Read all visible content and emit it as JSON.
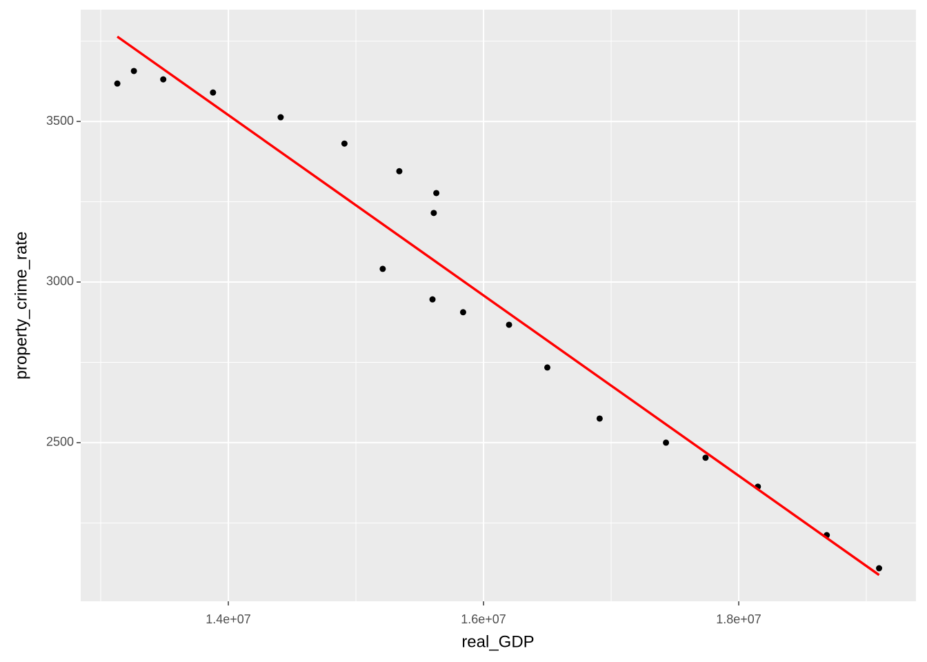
{
  "chart_data": {
    "type": "scatter",
    "x_label": "real_GDP",
    "y_label": "property_crime_rate",
    "x": [
      13130000,
      13260000,
      13490000,
      13880000,
      14410000,
      14910000,
      15340000,
      15630000,
      15610000,
      15210000,
      15600000,
      15840000,
      16200000,
      16500000,
      16910000,
      17430000,
      17740000,
      18150000,
      18690000,
      19100000
    ],
    "values": [
      3618,
      3657,
      3631,
      3590,
      3513,
      3431,
      3345,
      3277,
      3215,
      3041,
      2946,
      2906,
      2867,
      2734,
      2575,
      2500,
      2453,
      2363,
      2212,
      2109
    ],
    "color": "#000000",
    "fit": {
      "color": "#ff0000",
      "x": [
        13130000,
        19100000
      ],
      "y": [
        3764,
        2088
      ]
    },
    "xlim": [
      12843000,
      19389000
    ],
    "ylim": [
      2006,
      3848
    ],
    "xticks": [
      {
        "value": 14000000,
        "label": "1.4e+07"
      },
      {
        "value": 16000000,
        "label": "1.6e+07"
      },
      {
        "value": 18000000,
        "label": "1.8e+07"
      }
    ],
    "yticks": [
      2500,
      3000,
      3500
    ],
    "x_minor_ticks": [
      13000000,
      15000000,
      17000000,
      19000000
    ],
    "y_minor_ticks": [
      2250,
      2750,
      3250,
      3750
    ],
    "grid": true
  }
}
